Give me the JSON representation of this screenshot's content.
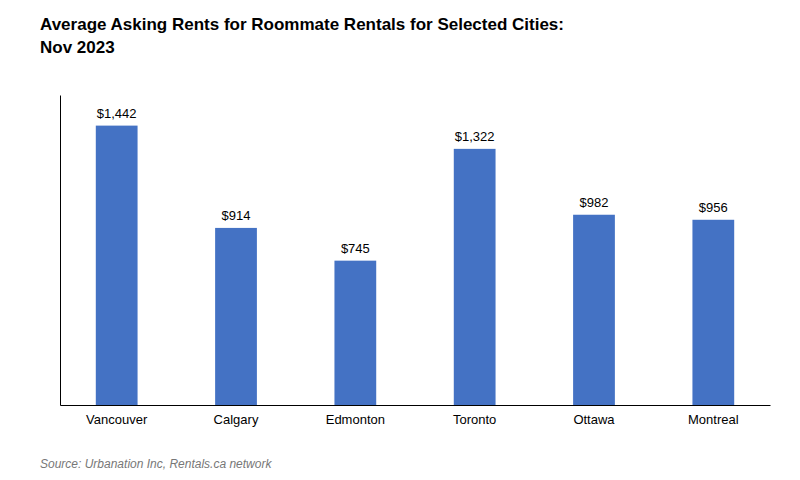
{
  "chart_data": {
    "type": "bar",
    "title": "Average Asking Rents for Roommate Rentals for Selected Cities:\nNov 2023",
    "categories": [
      "Vancouver",
      "Calgary",
      "Edmonton",
      "Toronto",
      "Ottawa",
      "Montreal"
    ],
    "values": [
      1442,
      914,
      745,
      1322,
      982,
      956
    ],
    "value_labels": [
      "$1,442",
      "$914",
      "$745",
      "$1,322",
      "$982",
      "$956"
    ],
    "color": "#4472C4",
    "ylim": [
      0,
      1600
    ],
    "data_labels": true,
    "tick_labels": "x",
    "annotations": [
      "Source: Urbanation Inc, Rentals.ca network"
    ]
  }
}
